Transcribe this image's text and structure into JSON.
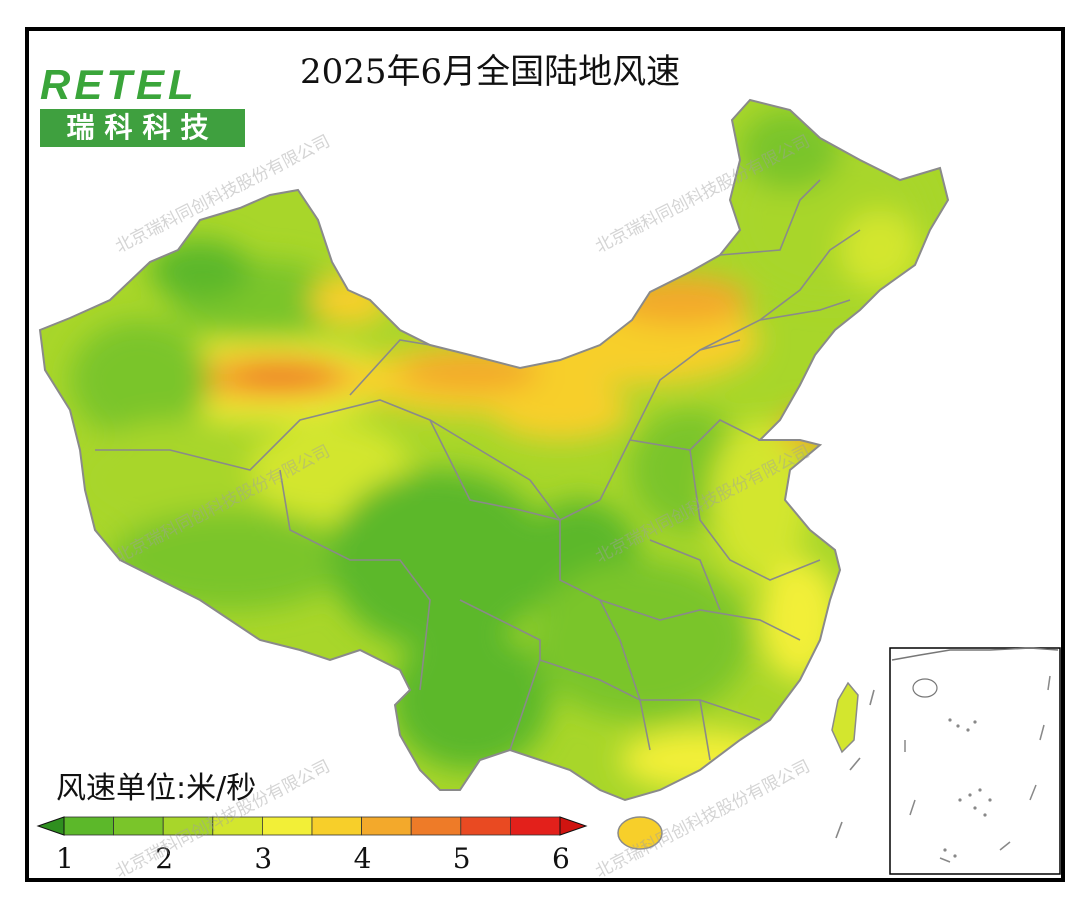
{
  "title": "2025年6月全国陆地风速",
  "logo": {
    "en": "RETEL",
    "cn": "瑞科科技"
  },
  "unit_label": "风速单位:米/秒",
  "watermark": "北京瑞科同创科技股份有限公司",
  "legend": {
    "ticks": [
      "1",
      "2",
      "3",
      "4",
      "5",
      "6"
    ],
    "colors": [
      "#5cb82a",
      "#7ac52a",
      "#a8d62a",
      "#d3e62e",
      "#f2ef37",
      "#f7cf2a",
      "#f3a92b",
      "#ee7b28",
      "#e94a22",
      "#e3201b"
    ]
  },
  "colors": {
    "border": "#8a8a8a",
    "low": "#5cb82a",
    "high": "#ee7b28"
  }
}
